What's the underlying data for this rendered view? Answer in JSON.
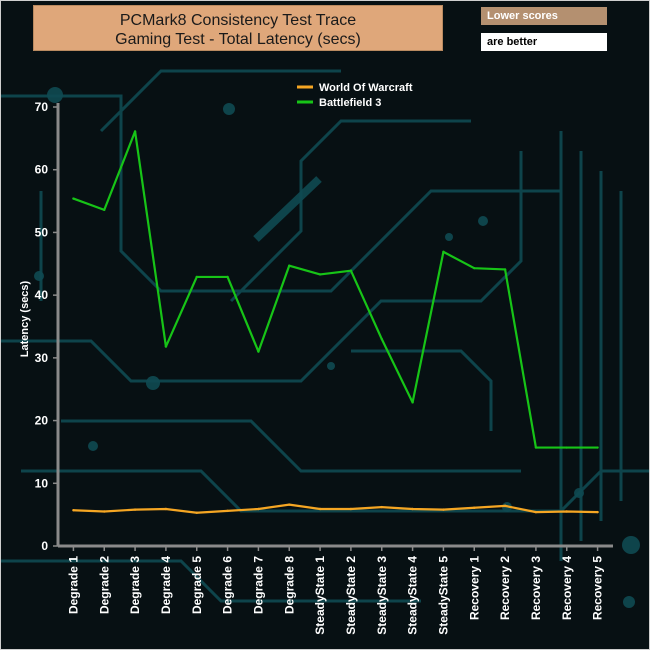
{
  "header": {
    "title_line1": "PCMark8 Consistency Test Trace",
    "title_line2": "Gaming Test -  Total Latency (secs)",
    "note_line1": "Lower scores",
    "note_line2": "are better"
  },
  "colors": {
    "wow": "#f5a623",
    "bf3": "#17c417",
    "axis": "#8a8a8a",
    "bg_circuit": "#0f4a52"
  },
  "chart_data": {
    "type": "line",
    "title": "PCMark8 Consistency Test Trace Gaming Test -  Total Latency (secs)",
    "ylabel": "Latency (secs)",
    "xlabel": "",
    "ylim": [
      0,
      70
    ],
    "yticks": [
      0,
      10,
      20,
      30,
      40,
      50,
      60,
      70
    ],
    "legend_position": "top",
    "grid": false,
    "categories": [
      "Degrade 1",
      "Degrade 2",
      "Degrade 3",
      "Degrade 4",
      "Degrade 5",
      "Degrade 6",
      "Degrade 7",
      "Degrade 8",
      "SteadyState 1",
      "SteadyState 2",
      "SteadyState 3",
      "SteadyState 4",
      "SteadyState 5",
      "Recovery 1",
      "Recovery 2",
      "Recovery 3",
      "Recovery 4",
      "Recovery 5"
    ],
    "series": [
      {
        "name": "World Of Warcraft",
        "color": "#f5a623",
        "values": [
          5.7,
          5.5,
          5.8,
          5.9,
          5.3,
          5.6,
          5.9,
          6.6,
          5.9,
          5.9,
          6.2,
          5.9,
          5.8,
          6.1,
          6.4,
          5.4,
          5.5,
          5.4
        ]
      },
      {
        "name": "Battlefield 3",
        "color": "#17c417",
        "values": [
          55.4,
          53.6,
          66.1,
          31.8,
          42.9,
          42.9,
          31.0,
          44.7,
          43.3,
          43.9,
          33.0,
          22.9,
          46.9,
          44.3,
          44.1,
          15.7,
          15.7,
          15.7
        ]
      }
    ]
  }
}
